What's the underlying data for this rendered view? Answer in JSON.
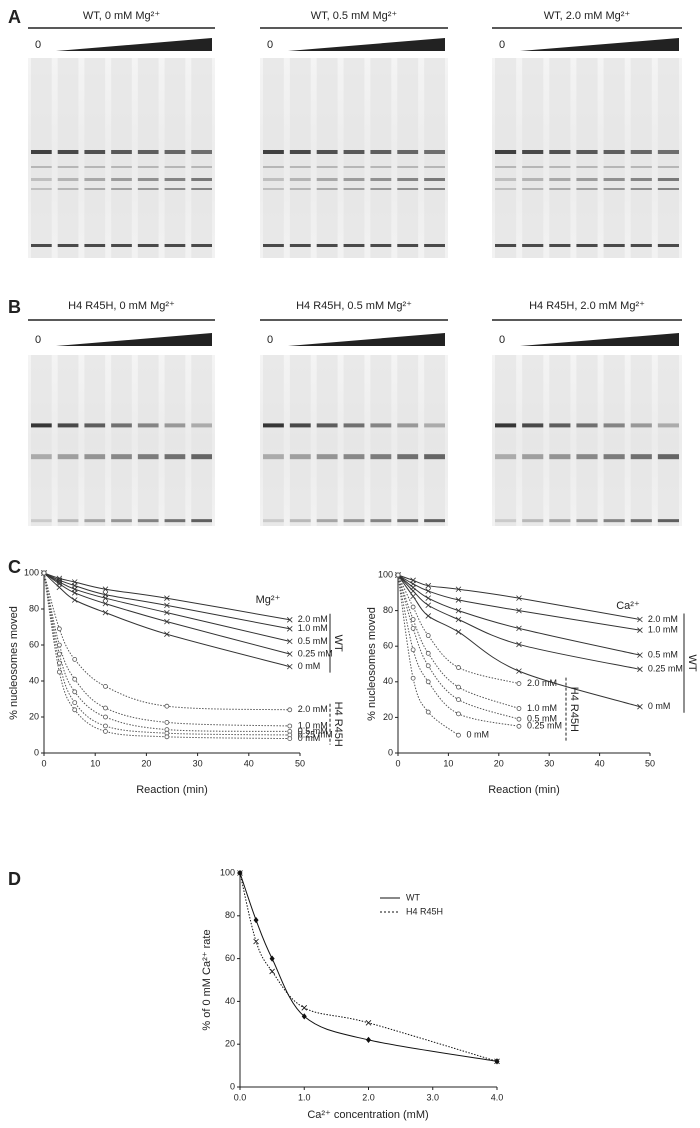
{
  "figure": {
    "panel_labels": [
      "A",
      "B",
      "C",
      "D"
    ],
    "gel_rows": [
      {
        "titles": [
          "WT, 0 mM Mg²⁺",
          "WT, 0.5 mM Mg²⁺",
          "WT, 2.0 mM Mg²⁺"
        ],
        "zero_label": "0"
      },
      {
        "titles": [
          "H4 R45H, 0 mM Mg²⁺",
          "H4 R45H, 0.5 mM Mg²⁺",
          "H4 R45H, 2.0 mM Mg²⁺"
        ],
        "zero_label": "0"
      }
    ]
  },
  "chart_data": [
    {
      "type": "line",
      "title": "Mg²⁺",
      "x_label": "Reaction (min)",
      "y_label": "% nucleosomes moved",
      "x": [
        0,
        3,
        6,
        12,
        24,
        48
      ],
      "xlim": [
        0,
        50
      ],
      "xticks": [
        0,
        10,
        20,
        30,
        40,
        50
      ],
      "ylim": [
        0,
        100
      ],
      "yticks": [
        0,
        20,
        40,
        60,
        80,
        100
      ],
      "group_labels": [
        "WT",
        "H4 R45H"
      ],
      "series": [
        {
          "name": "2.0 mM",
          "color": "#333333",
          "dashed": false,
          "marker": "x",
          "values": [
            100,
            97,
            95,
            91,
            86,
            74
          ]
        },
        {
          "name": "1.0 mM",
          "color": "#333333",
          "dashed": false,
          "marker": "x",
          "values": [
            100,
            96,
            93,
            88,
            82,
            69
          ]
        },
        {
          "name": "0.5 mM",
          "color": "#333333",
          "dashed": false,
          "marker": "x",
          "values": [
            100,
            95,
            91,
            86,
            78,
            62
          ]
        },
        {
          "name": "0.25 mM",
          "color": "#333333",
          "dashed": false,
          "marker": "x",
          "values": [
            100,
            94,
            89,
            83,
            73,
            55
          ]
        },
        {
          "name": "0 mM",
          "color": "#333333",
          "dashed": false,
          "marker": "x",
          "values": [
            100,
            92,
            85,
            78,
            66,
            48
          ]
        },
        {
          "name": "2.0 mM",
          "color": "#555555",
          "dashed": true,
          "marker": "o",
          "values": [
            100,
            69,
            52,
            37,
            26,
            24
          ]
        },
        {
          "name": "1.0 mM",
          "color": "#555555",
          "dashed": true,
          "marker": "o",
          "values": [
            100,
            60,
            41,
            25,
            17,
            15
          ]
        },
        {
          "name": "0.5 mM",
          "color": "#555555",
          "dashed": true,
          "marker": "o",
          "values": [
            100,
            55,
            34,
            20,
            13,
            12
          ]
        },
        {
          "name": "0.25 mM",
          "color": "#555555",
          "dashed": true,
          "marker": "o",
          "values": [
            100,
            50,
            28,
            15,
            11,
            10
          ]
        },
        {
          "name": "0 mM",
          "color": "#555555",
          "dashed": true,
          "marker": "o",
          "values": [
            100,
            45,
            24,
            12,
            9,
            8
          ]
        }
      ]
    },
    {
      "type": "line",
      "title": "Ca²⁺",
      "x_label": "Reaction (min)",
      "y_label": "% nucleosomes moved",
      "x": [
        0,
        3,
        6,
        12,
        24,
        48
      ],
      "xlim": [
        0,
        50
      ],
      "xticks": [
        0,
        10,
        20,
        30,
        40,
        50
      ],
      "ylim": [
        0,
        100
      ],
      "yticks": [
        0,
        20,
        40,
        60,
        80,
        100
      ],
      "group_labels": [
        "WT",
        "H4 R45H"
      ],
      "series": [
        {
          "name": "2.0 mM",
          "color": "#333333",
          "dashed": false,
          "marker": "x",
          "values": [
            100,
            97,
            94,
            92,
            87,
            75
          ]
        },
        {
          "name": "1.0 mM",
          "color": "#333333",
          "dashed": false,
          "marker": "x",
          "values": [
            100,
            95,
            91,
            86,
            80,
            69
          ]
        },
        {
          "name": "0.5 mM",
          "color": "#333333",
          "dashed": false,
          "marker": "x",
          "values": [
            100,
            93,
            87,
            80,
            70,
            55
          ]
        },
        {
          "name": "0.25 mM",
          "color": "#333333",
          "dashed": false,
          "marker": "x",
          "values": [
            100,
            91,
            83,
            75,
            61,
            47
          ]
        },
        {
          "name": "0 mM",
          "color": "#333333",
          "dashed": false,
          "marker": "x",
          "values": [
            100,
            88,
            77,
            68,
            46,
            26
          ]
        },
        {
          "name": "2.0 mM",
          "color": "#555555",
          "dashed": true,
          "marker": "o",
          "values": [
            100,
            82,
            66,
            48,
            39,
            null
          ]
        },
        {
          "name": "1.0 mM",
          "color": "#555555",
          "dashed": true,
          "marker": "o",
          "values": [
            100,
            75,
            56,
            37,
            25,
            null
          ]
        },
        {
          "name": "0.5 mM",
          "color": "#555555",
          "dashed": true,
          "marker": "o",
          "values": [
            100,
            70,
            49,
            30,
            19,
            null
          ]
        },
        {
          "name": "0.25 mM",
          "color": "#555555",
          "dashed": true,
          "marker": "o",
          "values": [
            100,
            58,
            40,
            22,
            15,
            null
          ]
        },
        {
          "name": "0 mM",
          "color": "#555555",
          "dashed": true,
          "marker": "o",
          "values": [
            100,
            42,
            23,
            10,
            null,
            null
          ]
        }
      ]
    },
    {
      "type": "line",
      "x_label": "Ca²⁺ concentration (mM)",
      "y_label": "% of 0 mM Ca²⁺ rate",
      "x": [
        0,
        0.25,
        0.5,
        1,
        2,
        4
      ],
      "xlim": [
        0,
        4
      ],
      "xticks": [
        {
          "value": 0,
          "label": "0.0"
        },
        {
          "value": 1,
          "label": "1.0"
        },
        {
          "value": 2,
          "label": "2.0"
        },
        {
          "value": 3,
          "label": "3.0"
        },
        {
          "value": 4,
          "label": "4.0"
        }
      ],
      "ylim": [
        0,
        100
      ],
      "yticks": [
        0,
        20,
        40,
        60,
        80,
        100
      ],
      "legend": "upper right",
      "series": [
        {
          "name": "WT",
          "color": "#111111",
          "dashed": false,
          "marker": "d",
          "values": [
            100,
            78,
            60,
            33,
            22,
            12
          ]
        },
        {
          "name": "H4 R45H",
          "color": "#111111",
          "dashed": true,
          "marker": "x",
          "values": [
            100,
            68,
            54,
            37,
            30,
            12
          ]
        }
      ]
    }
  ]
}
